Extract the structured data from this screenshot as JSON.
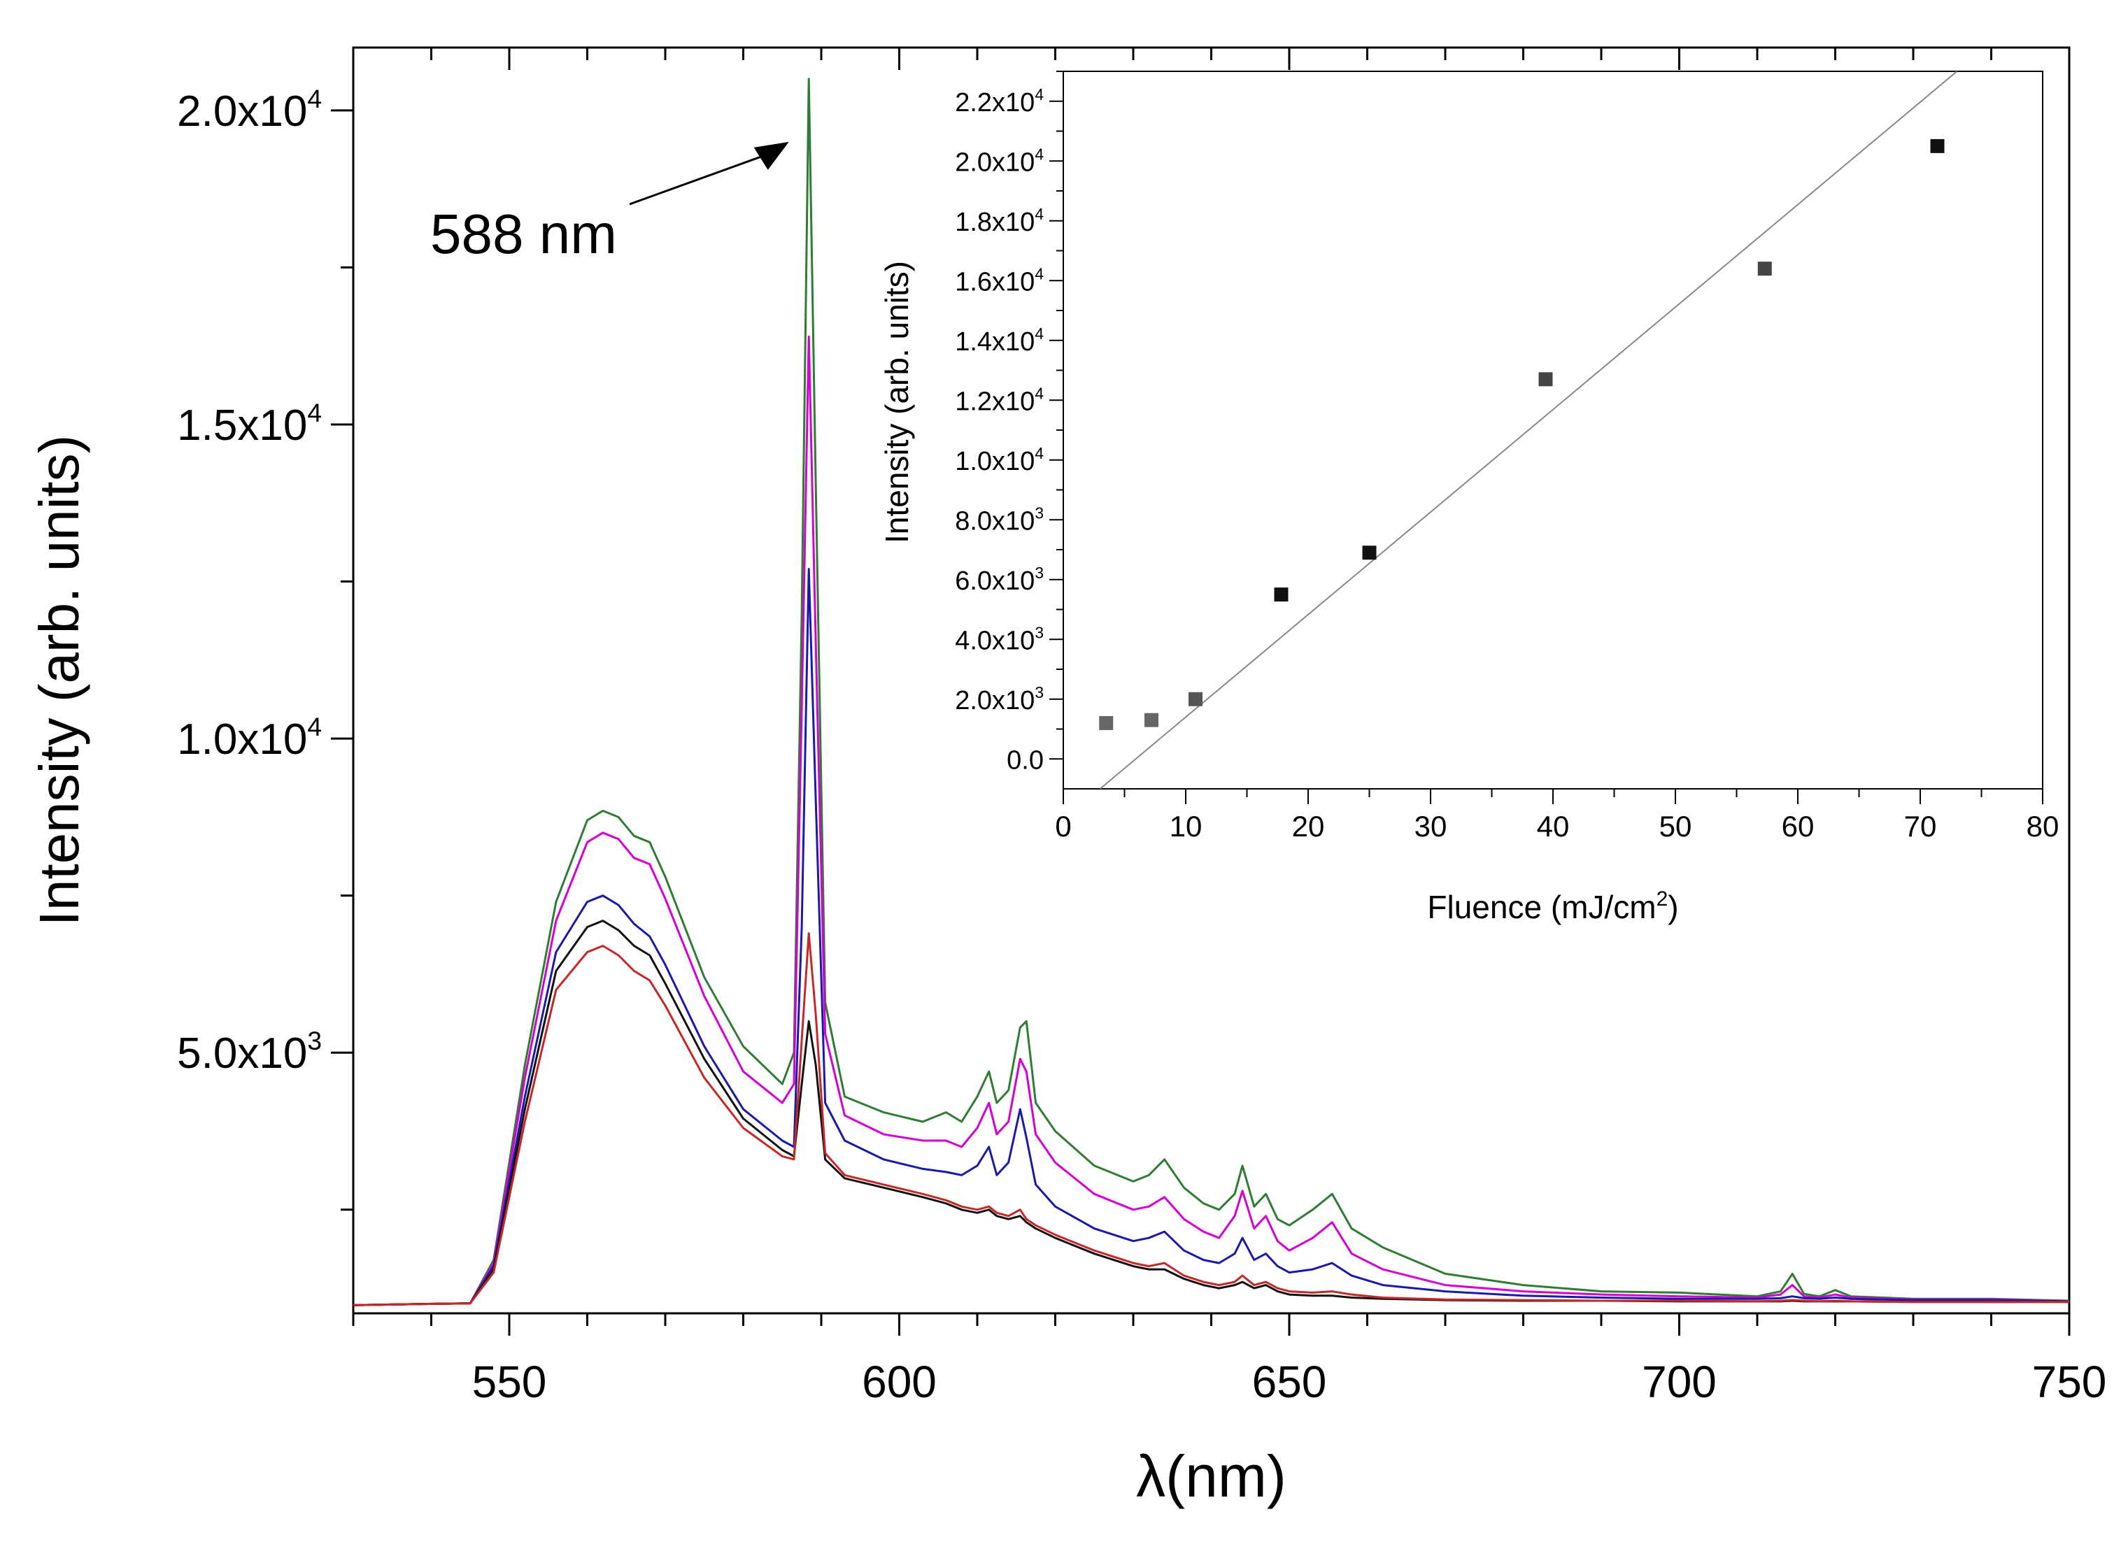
{
  "chart_data": [
    {
      "type": "line",
      "ylabel": "Intensity (arb. units)",
      "xlabel": "λ(nm)",
      "xlim": [
        530,
        750
      ],
      "ylim": [
        850,
        21000
      ],
      "x_major_ticks": [
        550,
        600,
        650,
        700,
        750
      ],
      "x_tick_labels": [
        "550",
        "600",
        "650",
        "700",
        "750"
      ],
      "y_major_ticks": [
        5000,
        10000,
        15000,
        20000
      ],
      "y_tick_labels": [
        {
          "mantissa": "5.0x10",
          "exp": "3"
        },
        {
          "mantissa": "1.0x10",
          "exp": "4"
        },
        {
          "mantissa": "1.5x10",
          "exp": "4"
        },
        {
          "mantissa": "2.0x10",
          "exp": "4"
        }
      ],
      "annotation": {
        "text": "588 nm",
        "x": 588,
        "y": 20500
      },
      "series_x": [
        530,
        545,
        548,
        552,
        556,
        560,
        562,
        564,
        566,
        568,
        570,
        575,
        580,
        585,
        586.5,
        587.5,
        588.4,
        589.3,
        590.5,
        593,
        598,
        603,
        606,
        608,
        610,
        611.5,
        612.5,
        614,
        615.5,
        616.3,
        617.5,
        620,
        625,
        630,
        632,
        634,
        636.5,
        639,
        641,
        643,
        644,
        645.5,
        647,
        648.5,
        650,
        653,
        655.5,
        658,
        662,
        670,
        680,
        690,
        700,
        710,
        713,
        714.5,
        716,
        718,
        720,
        722,
        730,
        740,
        750
      ],
      "series": [
        {
          "name": "green",
          "color": "#2e7d32",
          "values": [
            980,
            1010,
            1700,
            4800,
            7400,
            8700,
            8850,
            8750,
            8450,
            8350,
            7800,
            6200,
            5100,
            4500,
            5000,
            12000,
            20500,
            14000,
            5800,
            4300,
            4050,
            3900,
            4050,
            3900,
            4300,
            4700,
            4200,
            4400,
            5400,
            5500,
            4200,
            3750,
            3200,
            2950,
            3050,
            3300,
            2850,
            2600,
            2500,
            2750,
            3200,
            2550,
            2750,
            2350,
            2250,
            2500,
            2750,
            2200,
            1900,
            1480,
            1300,
            1200,
            1180,
            1120,
            1200,
            1480,
            1160,
            1120,
            1220,
            1120,
            1080,
            1080,
            1050
          ]
        },
        {
          "name": "magenta",
          "color": "#d400d4",
          "values": [
            980,
            1010,
            1650,
            4600,
            7100,
            8350,
            8500,
            8400,
            8100,
            8000,
            7450,
            5900,
            4700,
            4200,
            4500,
            10500,
            16400,
            11500,
            5300,
            4000,
            3700,
            3600,
            3600,
            3500,
            3800,
            4200,
            3700,
            3900,
            4900,
            4700,
            3700,
            3250,
            2750,
            2500,
            2550,
            2700,
            2350,
            2150,
            2050,
            2400,
            2800,
            2200,
            2400,
            2000,
            1850,
            2050,
            2300,
            1800,
            1550,
            1300,
            1200,
            1150,
            1120,
            1100,
            1150,
            1300,
            1120,
            1100,
            1150,
            1100,
            1070,
            1070,
            1040
          ]
        },
        {
          "name": "blue",
          "color": "#1a1aaa",
          "values": [
            980,
            1010,
            1600,
            4300,
            6600,
            7400,
            7500,
            7350,
            7050,
            6850,
            6400,
            5100,
            4100,
            3600,
            3500,
            7000,
            12700,
            9000,
            4200,
            3600,
            3300,
            3150,
            3100,
            3050,
            3200,
            3500,
            3050,
            3250,
            4100,
            3650,
            2900,
            2550,
            2200,
            2000,
            2050,
            2150,
            1850,
            1700,
            1650,
            1800,
            2050,
            1700,
            1800,
            1600,
            1500,
            1550,
            1650,
            1450,
            1300,
            1200,
            1130,
            1100,
            1080,
            1080,
            1090,
            1120,
            1090,
            1080,
            1100,
            1080,
            1060,
            1060,
            1040
          ]
        },
        {
          "name": "black",
          "color": "#111111",
          "values": [
            980,
            1010,
            1550,
            4100,
            6300,
            7000,
            7100,
            6950,
            6700,
            6550,
            6100,
            4900,
            3950,
            3450,
            3350,
            4500,
            5500,
            4800,
            3300,
            3000,
            2850,
            2700,
            2600,
            2500,
            2450,
            2500,
            2400,
            2350,
            2400,
            2300,
            2200,
            2050,
            1800,
            1600,
            1550,
            1550,
            1400,
            1300,
            1250,
            1300,
            1350,
            1250,
            1300,
            1200,
            1150,
            1130,
            1130,
            1100,
            1080,
            1060,
            1050,
            1050,
            1040,
            1040,
            1040,
            1050,
            1040,
            1040,
            1040,
            1040,
            1030,
            1030,
            1030
          ]
        },
        {
          "name": "red",
          "color": "#c62828",
          "values": [
            980,
            1010,
            1500,
            3900,
            6000,
            6600,
            6700,
            6550,
            6300,
            6150,
            5750,
            4600,
            3800,
            3350,
            3300,
            5200,
            6900,
            5600,
            3400,
            3050,
            2900,
            2750,
            2650,
            2550,
            2500,
            2550,
            2450,
            2400,
            2500,
            2350,
            2250,
            2100,
            1850,
            1650,
            1600,
            1650,
            1450,
            1350,
            1300,
            1350,
            1450,
            1300,
            1350,
            1250,
            1200,
            1180,
            1200,
            1150,
            1100,
            1070,
            1060,
            1050,
            1050,
            1040,
            1050,
            1060,
            1050,
            1040,
            1050,
            1040,
            1030,
            1030,
            1030
          ]
        }
      ]
    },
    {
      "type": "scatter",
      "ylabel": "Intensity (arb. units)",
      "xlabel": {
        "text": "Fluence (mJ/cm",
        "sup": "2",
        "close": ")"
      },
      "xlim": [
        0,
        80
      ],
      "ylim": [
        -1000,
        23000
      ],
      "x_ticks": [
        0,
        10,
        20,
        30,
        40,
        50,
        60,
        70,
        80
      ],
      "x_tick_labels": [
        "0",
        "10",
        "20",
        "30",
        "40",
        "50",
        "60",
        "70",
        "80"
      ],
      "y_ticks": [
        0,
        2000,
        4000,
        6000,
        8000,
        10000,
        12000,
        14000,
        16000,
        18000,
        20000,
        22000
      ],
      "y_tick_labels": [
        {
          "mantissa": "0.0",
          "exp": ""
        },
        {
          "mantissa": "2.0x10",
          "exp": "3"
        },
        {
          "mantissa": "4.0x10",
          "exp": "3"
        },
        {
          "mantissa": "6.0x10",
          "exp": "3"
        },
        {
          "mantissa": "8.0x10",
          "exp": "3"
        },
        {
          "mantissa": "1.0x10",
          "exp": "4"
        },
        {
          "mantissa": "1.2x10",
          "exp": "4"
        },
        {
          "mantissa": "1.4x10",
          "exp": "4"
        },
        {
          "mantissa": "1.6x10",
          "exp": "4"
        },
        {
          "mantissa": "1.8x10",
          "exp": "4"
        },
        {
          "mantissa": "2.0x10",
          "exp": "4"
        },
        {
          "mantissa": "2.2x10",
          "exp": "4"
        }
      ],
      "points": {
        "x": [
          3.5,
          7.2,
          10.8,
          17.8,
          25.0,
          39.4,
          57.3,
          71.4
        ],
        "y": [
          1200,
          1300,
          2000,
          5500,
          6900,
          12700,
          16400,
          20500
        ],
        "colors": [
          "#666666",
          "#666666",
          "#555555",
          "#111111",
          "#111111",
          "#444444",
          "#444444",
          "#111111"
        ]
      },
      "fit_line": {
        "x": [
          3.0,
          73.0
        ],
        "y": [
          -1000,
          23000
        ],
        "color": "#888888"
      }
    }
  ]
}
